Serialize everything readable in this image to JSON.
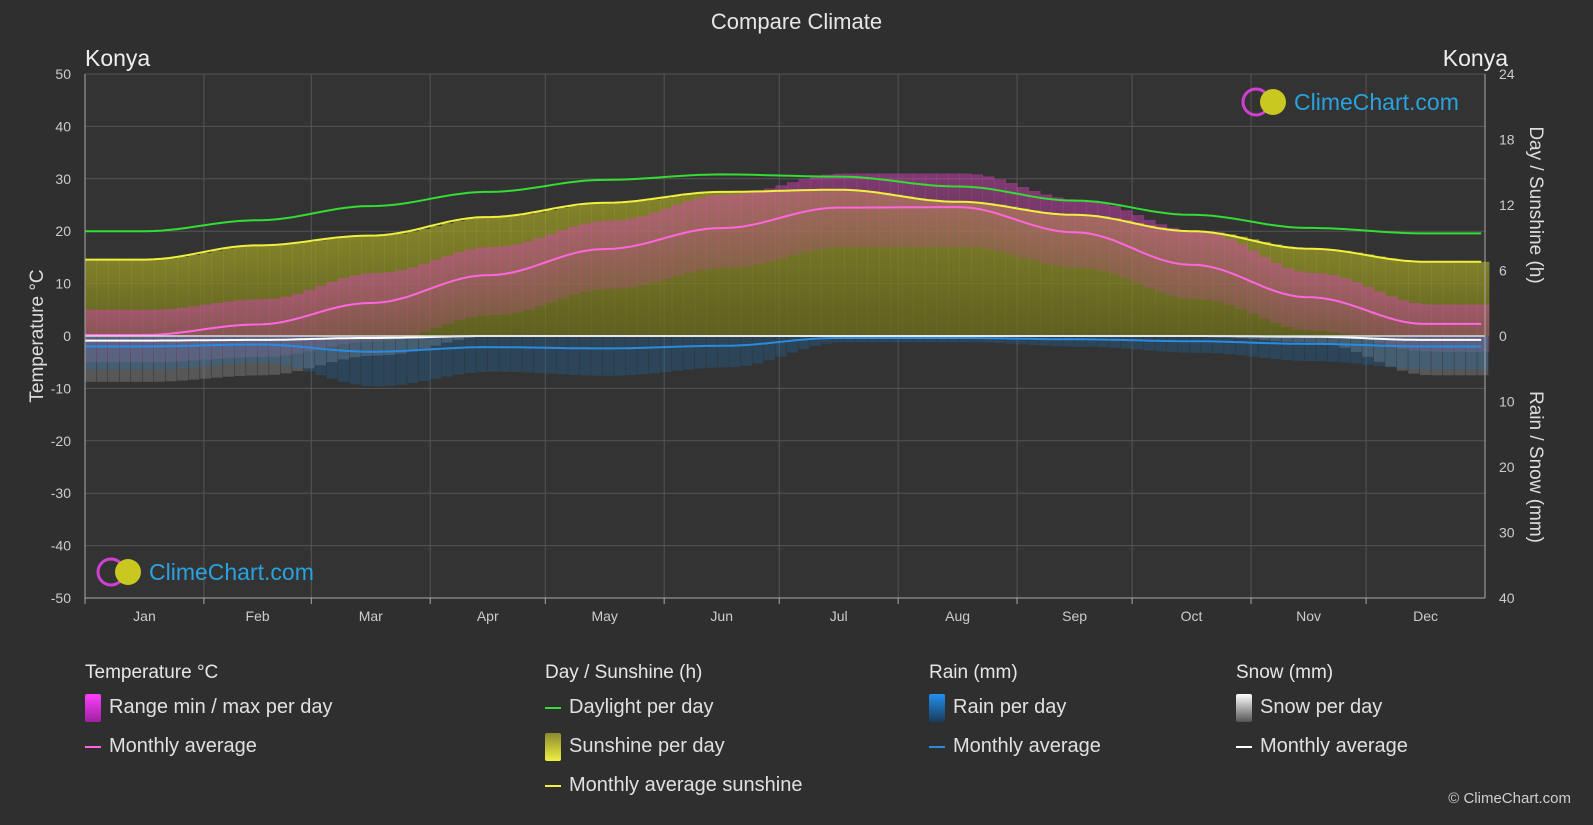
{
  "title": "Compare Climate",
  "location_left": "Konya",
  "location_right": "Konya",
  "watermark": "ClimeChart.com",
  "copyright": "© ClimeChart.com",
  "colors": {
    "background": "#2f2f2f",
    "temp_range": "#e040c0",
    "temp_avg": "#ff66dd",
    "daylight": "#33dd33",
    "sunshine_fill": "#b5b51e",
    "sunshine_avg": "#f0f040",
    "rain": "#1f7fd0",
    "rain_avg": "#2a8ae0",
    "snow": "#9a9a9a",
    "snow_avg": "#ffffff",
    "brand": "#29a3e0"
  },
  "legend": {
    "temperature": {
      "title": "Temperature °C",
      "range": "Range min / max per day",
      "avg": "Monthly average"
    },
    "sun": {
      "title": "Day / Sunshine (h)",
      "daylight": "Daylight per day",
      "sunshine": "Sunshine per day",
      "avg": "Monthly average sunshine"
    },
    "rain": {
      "title": "Rain (mm)",
      "per_day": "Rain per day",
      "avg": "Monthly average"
    },
    "snow": {
      "title": "Snow (mm)",
      "per_day": "Snow per day",
      "avg": "Monthly average"
    }
  },
  "chart_data": {
    "type": "area",
    "title": "Compare Climate",
    "categories": [
      "Jan",
      "Feb",
      "Mar",
      "Apr",
      "May",
      "Jun",
      "Jul",
      "Aug",
      "Sep",
      "Oct",
      "Nov",
      "Dec"
    ],
    "y_left": {
      "label": "Temperature °C",
      "range": [
        -50,
        50
      ],
      "ticks": [
        50,
        40,
        30,
        20,
        10,
        0,
        -10,
        -20,
        -30,
        -40,
        -50
      ]
    },
    "y_right_top": {
      "label": "Day / Sunshine (h)",
      "range": [
        0,
        24
      ],
      "ticks": [
        24,
        18,
        12,
        6,
        0
      ]
    },
    "y_right_bottom": {
      "label": "Rain / Snow (mm)",
      "range": [
        0,
        40
      ],
      "ticks": [
        10,
        20,
        30,
        40
      ]
    },
    "grid": true,
    "series": [
      {
        "name": "Daylight per day",
        "unit": "h",
        "values": [
          9.6,
          10.6,
          11.9,
          13.2,
          14.3,
          14.8,
          14.6,
          13.7,
          12.4,
          11.1,
          9.9,
          9.4
        ]
      },
      {
        "name": "Monthly average sunshine",
        "unit": "h",
        "values": [
          7.0,
          8.3,
          9.2,
          10.9,
          12.2,
          13.2,
          13.4,
          12.3,
          11.1,
          9.6,
          8.0,
          6.8
        ]
      },
      {
        "name": "Monthly average",
        "group": "Temperature °C",
        "unit": "°C",
        "values": [
          0.2,
          2.2,
          6.3,
          11.6,
          16.6,
          20.6,
          24.5,
          24.6,
          19.8,
          13.6,
          7.4,
          2.3
        ]
      },
      {
        "name": "Range min / max per day (max)",
        "unit": "°C",
        "values": [
          5,
          7,
          12,
          17,
          22,
          27,
          31,
          31,
          26,
          20,
          12,
          6
        ]
      },
      {
        "name": "Range min / max per day (min)",
        "unit": "°C",
        "values": [
          -5,
          -4,
          -1,
          4,
          9,
          13,
          17,
          17,
          13,
          7,
          1,
          -3
        ]
      },
      {
        "name": "Rain monthly average",
        "unit": "mm",
        "values": [
          1.6,
          1.3,
          2.4,
          1.7,
          1.9,
          1.5,
          0.3,
          0.3,
          0.5,
          0.8,
          1.2,
          1.6
        ]
      },
      {
        "name": "Snow monthly average",
        "unit": "mm",
        "values": [
          0.7,
          0.6,
          0.3,
          0.0,
          0.0,
          0.0,
          0.0,
          0.0,
          0.0,
          0.0,
          0.1,
          0.6
        ]
      }
    ]
  }
}
